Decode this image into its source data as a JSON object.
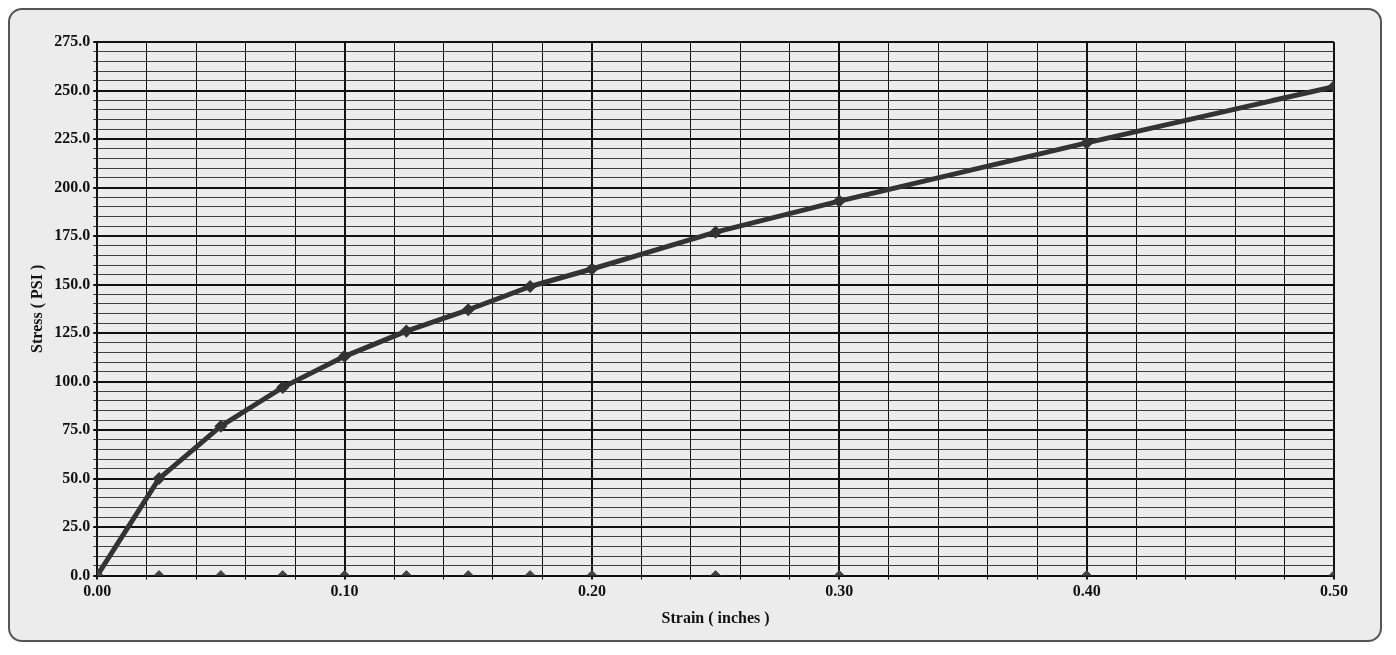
{
  "chart_data": {
    "type": "line",
    "xlabel": "Strain ( inches )",
    "ylabel": "Stress ( PSI )",
    "xlim": [
      0,
      0.5
    ],
    "ylim": [
      0,
      275
    ],
    "xticks": [
      {
        "value": 0,
        "label": "0.00"
      },
      {
        "value": 0.02,
        "label": null
      },
      {
        "value": 0.04,
        "label": null
      },
      {
        "value": 0.06,
        "label": null
      },
      {
        "value": 0.08,
        "label": null
      },
      {
        "value": 0.1,
        "label": "0.10"
      },
      {
        "value": 0.12,
        "label": null
      },
      {
        "value": 0.14,
        "label": null
      },
      {
        "value": 0.16,
        "label": null
      },
      {
        "value": 0.18,
        "label": null
      },
      {
        "value": 0.2,
        "label": "0.20"
      },
      {
        "value": 0.22,
        "label": null
      },
      {
        "value": 0.24,
        "label": null
      },
      {
        "value": 0.26,
        "label": null
      },
      {
        "value": 0.28,
        "label": null
      },
      {
        "value": 0.3,
        "label": "0.30"
      },
      {
        "value": 0.32,
        "label": null
      },
      {
        "value": 0.34,
        "label": null
      },
      {
        "value": 0.36,
        "label": null
      },
      {
        "value": 0.38,
        "label": null
      },
      {
        "value": 0.4,
        "label": "0.40"
      },
      {
        "value": 0.42,
        "label": null
      },
      {
        "value": 0.44,
        "label": null
      },
      {
        "value": 0.46,
        "label": null
      },
      {
        "value": 0.48,
        "label": null
      },
      {
        "value": 0.5,
        "label": "0.50"
      }
    ],
    "yticks": [
      {
        "value": 0,
        "label": "0.0"
      },
      {
        "value": 5,
        "label": null
      },
      {
        "value": 10,
        "label": null
      },
      {
        "value": 15,
        "label": null
      },
      {
        "value": 20,
        "label": null
      },
      {
        "value": 25,
        "label": "25.0"
      },
      {
        "value": 30,
        "label": null
      },
      {
        "value": 35,
        "label": null
      },
      {
        "value": 40,
        "label": null
      },
      {
        "value": 45,
        "label": null
      },
      {
        "value": 50,
        "label": "50.0"
      },
      {
        "value": 55,
        "label": null
      },
      {
        "value": 60,
        "label": null
      },
      {
        "value": 65,
        "label": null
      },
      {
        "value": 70,
        "label": null
      },
      {
        "value": 75,
        "label": "75.0"
      },
      {
        "value": 80,
        "label": null
      },
      {
        "value": 85,
        "label": null
      },
      {
        "value": 90,
        "label": null
      },
      {
        "value": 95,
        "label": null
      },
      {
        "value": 100,
        "label": "100.0"
      },
      {
        "value": 105,
        "label": null
      },
      {
        "value": 110,
        "label": null
      },
      {
        "value": 115,
        "label": null
      },
      {
        "value": 120,
        "label": null
      },
      {
        "value": 125,
        "label": "125.0"
      },
      {
        "value": 130,
        "label": null
      },
      {
        "value": 135,
        "label": null
      },
      {
        "value": 140,
        "label": null
      },
      {
        "value": 145,
        "label": null
      },
      {
        "value": 150,
        "label": "150.0"
      },
      {
        "value": 155,
        "label": null
      },
      {
        "value": 160,
        "label": null
      },
      {
        "value": 165,
        "label": null
      },
      {
        "value": 170,
        "label": null
      },
      {
        "value": 175,
        "label": "175.0"
      },
      {
        "value": 180,
        "label": null
      },
      {
        "value": 185,
        "label": null
      },
      {
        "value": 190,
        "label": null
      },
      {
        "value": 195,
        "label": null
      },
      {
        "value": 200,
        "label": "200.0"
      },
      {
        "value": 205,
        "label": null
      },
      {
        "value": 210,
        "label": null
      },
      {
        "value": 215,
        "label": null
      },
      {
        "value": 220,
        "label": null
      },
      {
        "value": 225,
        "label": "225.0"
      },
      {
        "value": 230,
        "label": null
      },
      {
        "value": 235,
        "label": null
      },
      {
        "value": 240,
        "label": null
      },
      {
        "value": 245,
        "label": null
      },
      {
        "value": 250,
        "label": "250.0"
      },
      {
        "value": 255,
        "label": null
      },
      {
        "value": 260,
        "label": null
      },
      {
        "value": 265,
        "label": null
      },
      {
        "value": 270,
        "label": null
      },
      {
        "value": 275,
        "label": "275.0"
      }
    ],
    "grid": true,
    "legend": false,
    "marker": "diamond",
    "series": [
      {
        "type": "line",
        "color": "#333333",
        "x": [
          0,
          0.025,
          0.05,
          0.075,
          0.1,
          0.125,
          0.15,
          0.175,
          0.2,
          0.25,
          0.3,
          0.4,
          0.5
        ],
        "values": [
          0,
          50,
          77,
          97,
          113,
          126,
          137,
          149,
          158,
          177,
          193,
          223,
          252
        ]
      },
      {
        "type": "scatter",
        "color": "#444444",
        "x": [
          0,
          0.025,
          0.05,
          0.075,
          0.1,
          0.125,
          0.15,
          0.175,
          0.2,
          0.25,
          0.3,
          0.4,
          0.5
        ],
        "values": [
          0,
          0,
          0,
          0,
          0,
          0,
          0,
          0,
          0,
          0,
          0,
          0,
          0
        ]
      }
    ]
  }
}
